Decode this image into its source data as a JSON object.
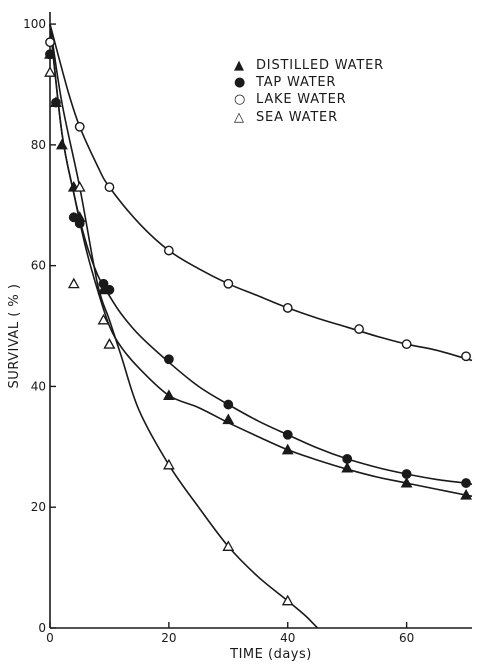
{
  "chart_data": {
    "type": "line",
    "title": "",
    "xlabel": "TIME (days)",
    "ylabel": "SURVIVAL ( % )",
    "xlim": [
      0,
      71
    ],
    "ylim": [
      0,
      102
    ],
    "xticks": [
      0,
      20,
      40,
      60
    ],
    "yticks": [
      0,
      20,
      40,
      60,
      80,
      100
    ],
    "xtick_labels": [
      "0",
      "20",
      "40",
      "60"
    ],
    "ytick_labels": [
      "0",
      "20",
      "40",
      "60",
      "80",
      "100"
    ],
    "grid": false,
    "legend_position": "top-right",
    "series": [
      {
        "name": "DISTILLED WATER",
        "marker": "filled-triangle",
        "x": [
          0,
          1,
          2,
          4,
          5,
          9,
          10,
          20,
          30,
          40,
          50,
          60,
          70
        ],
        "y": [
          95,
          87,
          80,
          73,
          68,
          56,
          47,
          38.5,
          34.5,
          29.5,
          26.5,
          24,
          22
        ]
      },
      {
        "name": "TAP WATER",
        "marker": "filled-circle",
        "x": [
          0,
          1,
          4,
          5,
          9,
          10,
          20,
          30,
          40,
          50,
          60,
          70
        ],
        "y": [
          95,
          87,
          68,
          67,
          57,
          56,
          44.5,
          37,
          32,
          28,
          25.5,
          24
        ]
      },
      {
        "name": "LAKE WATER",
        "marker": "open-circle",
        "x": [
          0,
          5,
          10,
          20,
          30,
          40,
          52,
          60,
          70
        ],
        "y": [
          97,
          83,
          73,
          62.5,
          57,
          53,
          49.5,
          47,
          45
        ]
      },
      {
        "name": "SEA WATER",
        "marker": "open-triangle",
        "x": [
          0,
          4,
          5,
          9,
          10,
          20,
          30,
          40
        ],
        "y": [
          92,
          57,
          73,
          51,
          47,
          27,
          13.5,
          4.5
        ]
      }
    ],
    "curves": [
      {
        "name": "DISTILLED WATER",
        "x": [
          0,
          2,
          4,
          6,
          8,
          10,
          12,
          15,
          20,
          25,
          30,
          35,
          40,
          45,
          50,
          55,
          60,
          65,
          70,
          71
        ],
        "y": [
          100,
          82,
          72,
          63,
          56,
          50,
          46.5,
          43,
          38.5,
          36.5,
          34,
          31.7,
          29.5,
          27.8,
          26.3,
          25,
          24,
          23,
          22,
          21.8
        ]
      },
      {
        "name": "TAP WATER",
        "x": [
          0,
          2,
          4,
          6,
          8,
          10,
          12,
          15,
          20,
          25,
          30,
          35,
          40,
          45,
          50,
          55,
          60,
          65,
          70,
          71
        ],
        "y": [
          100,
          82,
          72,
          64,
          58.5,
          55,
          52,
          48.5,
          44,
          40,
          37,
          34.3,
          32,
          29.8,
          28,
          26.6,
          25.5,
          24.6,
          24,
          23.8
        ]
      },
      {
        "name": "LAKE WATER",
        "x": [
          0,
          3,
          5,
          8,
          10,
          15,
          20,
          25,
          30,
          35,
          40,
          45,
          50,
          55,
          60,
          65,
          71
        ],
        "y": [
          100,
          89,
          83,
          76.5,
          73,
          67,
          62.5,
          59.5,
          57,
          55,
          53,
          51.3,
          49.8,
          48.3,
          47,
          46,
          44.3
        ]
      },
      {
        "name": "SEA WATER",
        "x": [
          0,
          2,
          5,
          8,
          10,
          12,
          15,
          20,
          25,
          30,
          35,
          40,
          43,
          45
        ],
        "y": [
          100,
          87,
          73,
          57,
          51,
          45,
          36,
          27,
          20,
          13.5,
          8.5,
          4.5,
          2,
          0
        ]
      }
    ]
  },
  "legend": [
    {
      "symbol": "▲",
      "label": "DISTILLED WATER"
    },
    {
      "symbol": "●",
      "label": "TAP WATER"
    },
    {
      "symbol": "○",
      "label": "LAKE WATER"
    },
    {
      "symbol": "△",
      "label": "SEA WATER"
    }
  ]
}
